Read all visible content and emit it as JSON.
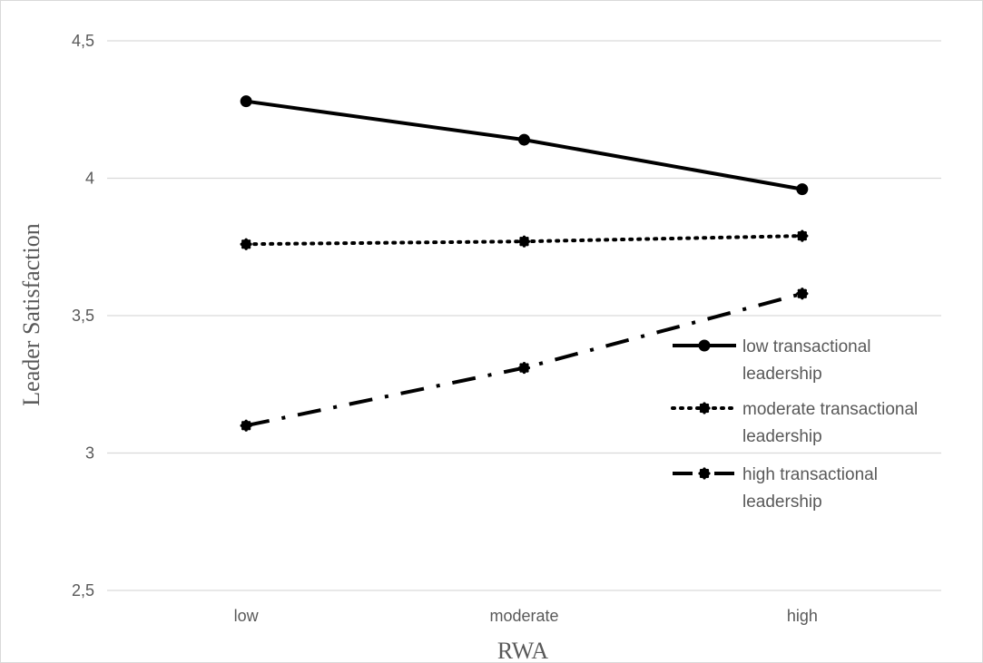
{
  "chart_data": {
    "type": "line",
    "title": "",
    "xlabel": "RWA",
    "ylabel": "Leader Satisfaction",
    "categories": [
      "low",
      "moderate",
      "high"
    ],
    "ylim": [
      2.5,
      4.5
    ],
    "yticks": [
      2.5,
      3,
      3.5,
      4,
      4.5
    ],
    "ytick_labels": [
      "2,5",
      "3",
      "3,5",
      "4",
      "4,5"
    ],
    "grid": true,
    "legend_position": "right",
    "series": [
      {
        "name": "low transactional leadership",
        "legend_lines": [
          "low transactional",
          "leadership"
        ],
        "style": "solid",
        "values": [
          4.28,
          4.14,
          3.96
        ]
      },
      {
        "name": "moderate transactional leadership",
        "legend_lines": [
          "moderate transactional",
          "leadership"
        ],
        "style": "dotted",
        "values": [
          3.76,
          3.77,
          3.79
        ]
      },
      {
        "name": "high transactional leadership",
        "legend_lines": [
          "high transactional",
          "leadership"
        ],
        "style": "dashdot",
        "values": [
          3.1,
          3.31,
          3.58
        ]
      }
    ],
    "colors": {
      "line": "#000000",
      "grid": "#d9d9d9",
      "text": "#595959"
    }
  }
}
